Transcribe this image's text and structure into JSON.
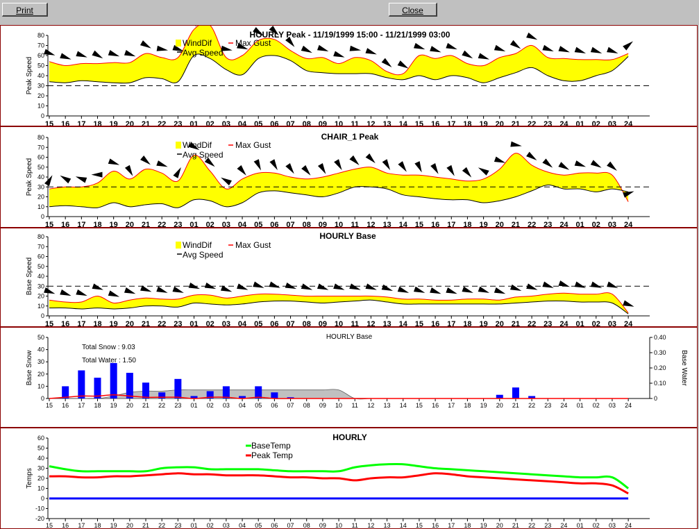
{
  "toolbar": {
    "print_label": "Print",
    "close_label": "Close"
  },
  "x_ticks": [
    "15",
    "16",
    "17",
    "18",
    "19",
    "20",
    "21",
    "22",
    "23",
    "01",
    "02",
    "03",
    "04",
    "05",
    "06",
    "07",
    "08",
    "09",
    "10",
    "11",
    "12",
    "13",
    "14",
    "15",
    "16",
    "17",
    "18",
    "19",
    "20",
    "21",
    "22",
    "23",
    "24",
    "01",
    "02",
    "03",
    "24"
  ],
  "chart_data": [
    {
      "type": "area",
      "title": "HOURLY Peak - 11/19/1999 15:00 - 11/21/1999 03:00",
      "ylabel": "Peak Speed",
      "ylim": [
        0,
        80
      ],
      "yticks": [
        0,
        10,
        20,
        30,
        40,
        50,
        60,
        70,
        80
      ],
      "legend": [
        "WindDif",
        "Max Gust",
        "Avg Speed"
      ],
      "reference_line": 30,
      "series": [
        {
          "name": "Max Gust",
          "values": [
            54,
            50,
            52,
            52,
            53,
            53,
            62,
            58,
            58,
            86,
            90,
            58,
            60,
            75,
            76,
            65,
            57,
            58,
            52,
            58,
            55,
            44,
            42,
            60,
            57,
            60,
            52,
            50,
            58,
            62,
            70,
            58,
            57,
            56,
            56,
            56,
            62
          ]
        },
        {
          "name": "Avg Speed",
          "values": [
            34,
            33,
            35,
            34,
            33,
            33,
            38,
            37,
            34,
            60,
            57,
            46,
            41,
            57,
            60,
            55,
            45,
            43,
            42,
            42,
            42,
            38,
            36,
            40,
            36,
            40,
            38,
            33,
            38,
            43,
            48,
            40,
            35,
            35,
            40,
            45,
            59
          ]
        }
      ],
      "arrow_angles": [
        200,
        200,
        200,
        210,
        200,
        200,
        210,
        190,
        200,
        250,
        250,
        190,
        200,
        215,
        225,
        230,
        205,
        200,
        200,
        190,
        200,
        220,
        210,
        200,
        200,
        200,
        210,
        200,
        200,
        215,
        205,
        200,
        200,
        200,
        200,
        200,
        140
      ]
    },
    {
      "type": "area",
      "title": "CHAIR_1 Peak",
      "ylabel": "Peak Speed",
      "ylim": [
        0,
        80
      ],
      "yticks": [
        0,
        10,
        20,
        30,
        40,
        50,
        60,
        70,
        80
      ],
      "legend": [
        "WindDif",
        "Max Gust",
        "Avg Speed"
      ],
      "reference_line": 30,
      "series": [
        {
          "name": "Max Gust",
          "values": [
            28,
            30,
            30,
            34,
            46,
            38,
            48,
            44,
            36,
            62,
            46,
            28,
            38,
            44,
            44,
            40,
            38,
            40,
            44,
            48,
            50,
            44,
            42,
            42,
            40,
            38,
            36,
            38,
            48,
            64,
            52,
            45,
            42,
            44,
            44,
            42,
            15
          ]
        },
        {
          "name": "Avg Speed",
          "values": [
            10,
            11,
            10,
            9,
            14,
            10,
            12,
            13,
            9,
            17,
            16,
            10,
            14,
            24,
            26,
            24,
            22,
            20,
            24,
            30,
            30,
            28,
            22,
            20,
            18,
            17,
            17,
            14,
            16,
            20,
            26,
            32,
            28,
            28,
            25,
            28,
            25
          ]
        }
      ],
      "arrow_angles": [
        120,
        30,
        20,
        0,
        200,
        240,
        220,
        200,
        120,
        210,
        220,
        30,
        230,
        245,
        240,
        235,
        230,
        240,
        240,
        225,
        225,
        240,
        235,
        245,
        240,
        240,
        230,
        30,
        200,
        190,
        215,
        220,
        210,
        200,
        210,
        220,
        160
      ]
    },
    {
      "type": "area",
      "title": "HOURLY Base",
      "ylabel": "Base Speed",
      "ylim": [
        0,
        80
      ],
      "yticks": [
        0,
        10,
        20,
        30,
        40,
        50,
        60,
        70,
        80
      ],
      "legend": [
        "WindDif",
        "Max Gust",
        "Avg Speed"
      ],
      "reference_line": 30,
      "series": [
        {
          "name": "Max Gust",
          "values": [
            16,
            14,
            14,
            20,
            13,
            16,
            18,
            17,
            17,
            21,
            21,
            18,
            20,
            22,
            22,
            21,
            20,
            20,
            20,
            20,
            20,
            19,
            17,
            17,
            16,
            16,
            17,
            17,
            16,
            19,
            20,
            22,
            23,
            22,
            22,
            22,
            3
          ]
        },
        {
          "name": "Avg Speed",
          "values": [
            8,
            8,
            7,
            8,
            7,
            8,
            10,
            10,
            9,
            13,
            12,
            11,
            12,
            14,
            15,
            15,
            14,
            13,
            14,
            15,
            16,
            14,
            12,
            12,
            12,
            12,
            12,
            12,
            12,
            13,
            14,
            15,
            15,
            14,
            14,
            13,
            2
          ]
        }
      ],
      "arrow_angles": [
        200,
        200,
        200,
        200,
        200,
        200,
        200,
        200,
        200,
        200,
        200,
        200,
        200,
        200,
        200,
        200,
        200,
        200,
        200,
        200,
        200,
        200,
        200,
        200,
        200,
        200,
        200,
        200,
        200,
        200,
        200,
        200,
        200,
        200,
        200,
        200,
        200
      ]
    },
    {
      "type": "bar",
      "title": "HOURLY Base",
      "ylabel": "Base Snow",
      "ylabel_right": "Base Water",
      "ylim": [
        0,
        50
      ],
      "yticks": [
        0,
        10,
        20,
        30,
        40,
        50
      ],
      "ylim_right": [
        0,
        0.4
      ],
      "yticks_right": [
        "0",
        "0.10",
        "0.20",
        "0.30",
        "0.40"
      ],
      "annotations": [
        "Total Snow : 9.03",
        "Total Water : 1.50"
      ],
      "series": [
        {
          "name": "Snow",
          "values": [
            0,
            10,
            23,
            17,
            29,
            21,
            13,
            5,
            16,
            2,
            6,
            10,
            2,
            10,
            5,
            1,
            0,
            0,
            0,
            0,
            0,
            0,
            0,
            0,
            0,
            0,
            0,
            0,
            3,
            9,
            2,
            0,
            0,
            0,
            0,
            0,
            0
          ]
        },
        {
          "name": "Depth",
          "values": [
            0,
            0,
            0,
            0,
            2,
            5,
            6,
            6,
            7,
            7,
            7,
            7,
            7,
            7,
            7,
            7,
            7,
            7,
            7,
            0,
            0,
            0,
            0,
            0,
            0,
            0,
            0,
            0,
            0,
            0,
            0,
            0,
            0,
            0,
            0,
            0,
            0
          ]
        },
        {
          "name": "Water",
          "values": [
            0,
            1,
            2,
            2,
            3,
            2,
            1,
            1,
            1,
            0,
            1,
            1,
            0,
            1,
            0,
            0,
            0,
            0,
            0,
            0,
            0,
            0,
            0,
            0,
            0,
            0,
            0,
            0,
            0,
            0,
            0,
            0,
            0,
            0,
            0,
            0,
            0
          ]
        }
      ]
    },
    {
      "type": "line",
      "title": "HOURLY",
      "ylabel": "Temps",
      "ylim": [
        -20,
        60
      ],
      "yticks": [
        -20,
        -10,
        0,
        10,
        20,
        30,
        40,
        50,
        60
      ],
      "legend": [
        "BaseTemp",
        "Peak Temp"
      ],
      "series": [
        {
          "name": "BaseTemp",
          "values": [
            32,
            29,
            27,
            27,
            27,
            27,
            27,
            30,
            31,
            31,
            29,
            29,
            29,
            29,
            28,
            27,
            27,
            27,
            27,
            31,
            33,
            34,
            34,
            32,
            30,
            29,
            28,
            27,
            26,
            25,
            24,
            23,
            22,
            21,
            21,
            21,
            10
          ]
        },
        {
          "name": "Peak Temp",
          "values": [
            22,
            22,
            21,
            21,
            22,
            22,
            23,
            24,
            25,
            24,
            24,
            23,
            23,
            23,
            22,
            21,
            21,
            20,
            20,
            18,
            20,
            21,
            21,
            23,
            25,
            24,
            22,
            21,
            20,
            19,
            18,
            17,
            16,
            15,
            15,
            13,
            5
          ]
        },
        {
          "name": "Zero",
          "values": [
            0,
            0,
            0,
            0,
            0,
            0,
            0,
            0,
            0,
            0,
            0,
            0,
            0,
            0,
            0,
            0,
            0,
            0,
            0,
            0,
            0,
            0,
            0,
            0,
            0,
            0,
            0,
            0,
            0,
            0,
            0,
            0,
            0,
            0,
            0,
            0,
            0
          ]
        }
      ]
    }
  ],
  "colors": {
    "winddif": "#ffff00",
    "max_gust": "#ff0000",
    "avg_speed": "#000000",
    "snow_bar": "#0000ff",
    "depth_area": "#c0c0c0",
    "base_temp": "#00ff00",
    "peak_temp": "#ff0000",
    "zero_line": "#0000ff"
  }
}
